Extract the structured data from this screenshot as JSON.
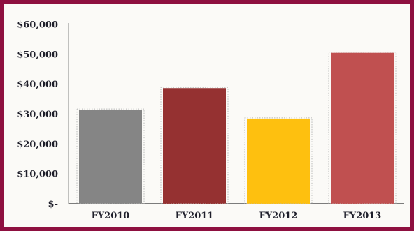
{
  "chart_data": {
    "type": "bar",
    "categories": [
      "FY2010",
      "FY2011",
      "FY2012",
      "FY2013"
    ],
    "values": [
      31500,
      38700,
      28500,
      50500
    ],
    "colors": [
      "#858585",
      "#953131",
      "#fec00f",
      "#c05050"
    ],
    "ylim": [
      0,
      60000
    ],
    "yticks": [
      0,
      10000,
      20000,
      30000,
      40000,
      50000,
      60000
    ],
    "ytick_labels": [
      "$-",
      "$10,000",
      "$20,000",
      "$30,000",
      "$40,000",
      "$50,000",
      "$60,000"
    ],
    "grid": false,
    "legend": "none"
  }
}
